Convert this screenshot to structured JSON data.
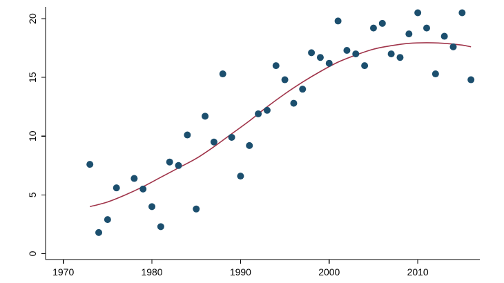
{
  "chart_data": {
    "type": "scatter",
    "title": "",
    "xlabel": "",
    "ylabel": "",
    "xlim": [
      1968,
      2017
    ],
    "ylim": [
      -0.5,
      21
    ],
    "xticks": [
      1970,
      1980,
      1990,
      2000,
      2010
    ],
    "yticks": [
      0,
      5,
      10,
      15,
      20
    ],
    "xtick_labels": [
      "1970",
      "1980",
      "1990",
      "2000",
      "2010"
    ],
    "ytick_labels": [
      "0",
      "5",
      "10",
      "15",
      "20"
    ],
    "y_tick_orientation": "rotated",
    "grid": false,
    "legend": "none",
    "points": {
      "x": [
        1973,
        1974,
        1975,
        1976,
        1978,
        1979,
        1980,
        1981,
        1982,
        1983,
        1984,
        1985,
        1986,
        1987,
        1988,
        1989,
        1990,
        1991,
        1992,
        1993,
        1994,
        1995,
        1996,
        1997,
        1998,
        1999,
        2000,
        2001,
        2002,
        2003,
        2004,
        2005,
        2006,
        2007,
        2008,
        2009,
        2010,
        2011,
        2012,
        2013,
        2014,
        2015,
        2016
      ],
      "y": [
        7.6,
        1.8,
        2.9,
        5.6,
        6.4,
        5.5,
        4.0,
        2.3,
        7.8,
        7.5,
        10.1,
        3.8,
        11.7,
        9.5,
        15.3,
        9.9,
        6.6,
        9.2,
        11.9,
        12.2,
        16.0,
        14.8,
        12.8,
        14.0,
        17.1,
        16.7,
        16.2,
        19.8,
        17.3,
        17.0,
        16.0,
        19.2,
        19.6,
        17.0,
        16.7,
        18.7,
        20.5,
        19.2,
        15.3,
        18.5,
        17.6,
        20.5,
        14.8
      ]
    },
    "fit": {
      "x": [
        1973,
        1975,
        1977,
        1979,
        1981,
        1983,
        1985,
        1987,
        1989,
        1991,
        1993,
        1995,
        1997,
        1999,
        2001,
        2003,
        2005,
        2007,
        2009,
        2011,
        2013,
        2015,
        2016
      ],
      "y": [
        4.0,
        4.4,
        5.0,
        5.7,
        6.5,
        7.3,
        8.1,
        9.1,
        10.2,
        11.3,
        12.5,
        13.6,
        14.6,
        15.5,
        16.3,
        16.9,
        17.4,
        17.7,
        17.9,
        17.95,
        17.9,
        17.75,
        17.6
      ]
    },
    "colors": {
      "points": "#1c4f6e",
      "fit": "#a0344a",
      "axis": "#000000"
    }
  }
}
